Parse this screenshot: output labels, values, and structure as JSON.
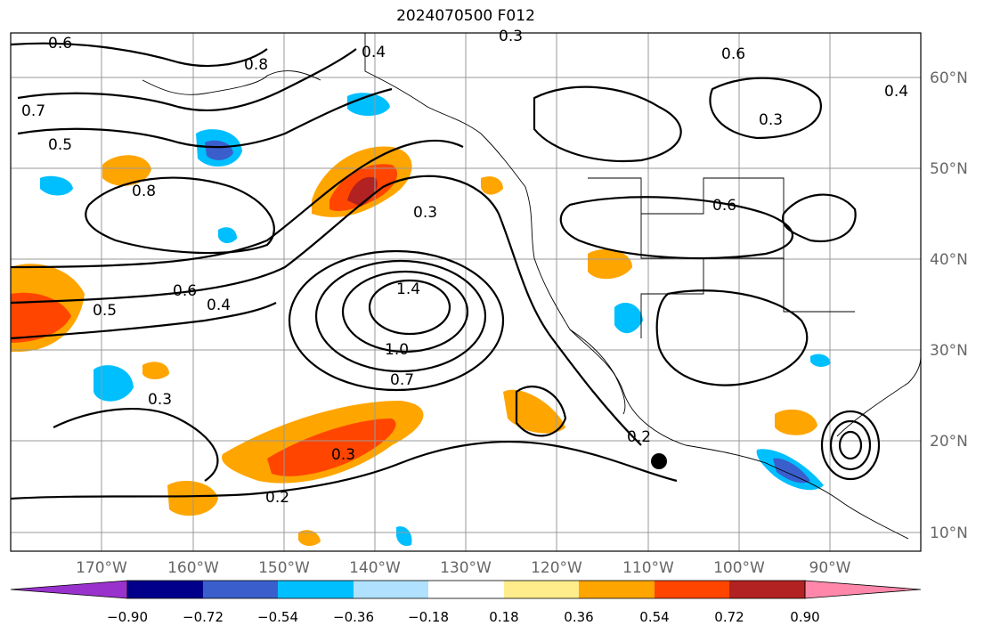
{
  "title": "2024070500 F012",
  "lat_labels": [
    "60°N",
    "50°N",
    "40°N",
    "30°N",
    "20°N",
    "10°N"
  ],
  "lon_labels": [
    "170°W",
    "160°W",
    "150°W",
    "140°W",
    "130°W",
    "120°W",
    "110°W",
    "100°W",
    "90°W"
  ],
  "colorbar": {
    "ticks": [
      "−0.90",
      "−0.72",
      "−0.54",
      "−0.36",
      "−0.18",
      "0.18",
      "0.36",
      "0.54",
      "0.72",
      "0.90"
    ],
    "colors": [
      "#9932cc",
      "#00008b",
      "#3a5fcd",
      "#00bfff",
      "#b0e2ff",
      "#ffffff",
      "#ffec8b",
      "#ffa500",
      "#ff4500",
      "#b22222",
      "#ff88aa"
    ]
  },
  "contour_labels": [
    "0.6",
    "0.4",
    "0.3",
    "0.8",
    "0.7",
    "0.5",
    "0.6",
    "0.8",
    "0.4",
    "0.3",
    "1.4",
    "1.0",
    "0.7",
    "0.2",
    "0.3",
    "0.6",
    "0.2",
    "0.3",
    "0.6",
    "0.3",
    "0.5",
    "0.4"
  ],
  "marker": "black-dot"
}
